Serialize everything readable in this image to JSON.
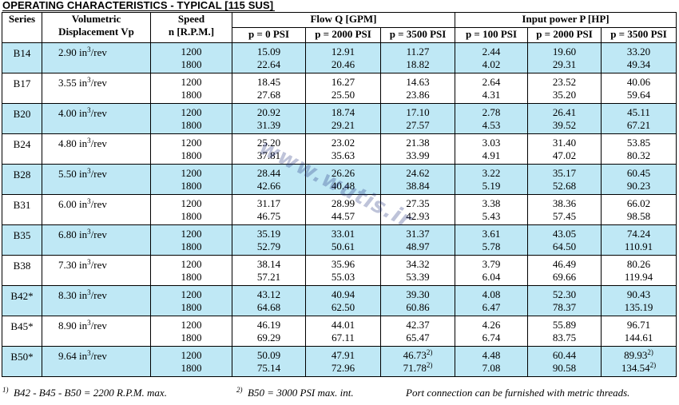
{
  "title": "OPERATING CHARACTERISTICS - TYPICAL [115 SUS]",
  "headers": {
    "series": "Series",
    "displacement_line1": "Volumetric",
    "displacement_line2": "Displacement Vp",
    "speed_line1": "Speed",
    "speed_line2": "n [R.P.M.]",
    "flow_group": "Flow Q [GPM]",
    "power_group": "Input power P [HP]",
    "flow_cols": [
      "p = 0 PSI",
      "p = 2000 PSI",
      "p = 3500 PSI"
    ],
    "power_cols": [
      "p = 100 PSI",
      "p = 2000 PSI",
      "p = 3500 PSI"
    ]
  },
  "rows": [
    {
      "series": "B14",
      "disp": "2.90",
      "speeds": [
        "1200",
        "1800"
      ],
      "flow0": [
        "15.09",
        "22.64"
      ],
      "flow2000": [
        "12.91",
        "20.46"
      ],
      "flow3500": [
        "11.27",
        "18.82"
      ],
      "pow100": [
        "2.44",
        "4.02"
      ],
      "pow2000": [
        "19.60",
        "29.31"
      ],
      "pow3500": [
        "33.20",
        "49.34"
      ]
    },
    {
      "series": "B17",
      "disp": "3.55",
      "speeds": [
        "1200",
        "1800"
      ],
      "flow0": [
        "18.45",
        "27.68"
      ],
      "flow2000": [
        "16.27",
        "25.50"
      ],
      "flow3500": [
        "14.63",
        "23.86"
      ],
      "pow100": [
        "2.64",
        "4.31"
      ],
      "pow2000": [
        "23.52",
        "35.20"
      ],
      "pow3500": [
        "40.06",
        "59.64"
      ]
    },
    {
      "series": "B20",
      "disp": "4.00",
      "speeds": [
        "1200",
        "1800"
      ],
      "flow0": [
        "20.92",
        "31.39"
      ],
      "flow2000": [
        "18.74",
        "29.21"
      ],
      "flow3500": [
        "17.10",
        "27.57"
      ],
      "pow100": [
        "2.78",
        "4.53"
      ],
      "pow2000": [
        "26.41",
        "39.52"
      ],
      "pow3500": [
        "45.11",
        "67.21"
      ]
    },
    {
      "series": "B24",
      "disp": "4.80",
      "speeds": [
        "1200",
        "1800"
      ],
      "flow0": [
        "25.20",
        "37.81"
      ],
      "flow2000": [
        "23.02",
        "35.63"
      ],
      "flow3500": [
        "21.38",
        "33.99"
      ],
      "pow100": [
        "3.03",
        "4.91"
      ],
      "pow2000": [
        "31.40",
        "47.02"
      ],
      "pow3500": [
        "53.85",
        "80.32"
      ]
    },
    {
      "series": "B28",
      "disp": "5.50",
      "speeds": [
        "1200",
        "1800"
      ],
      "flow0": [
        "28.44",
        "42.66"
      ],
      "flow2000": [
        "26.26",
        "40.48"
      ],
      "flow3500": [
        "24.62",
        "38.84"
      ],
      "pow100": [
        "3.22",
        "5.19"
      ],
      "pow2000": [
        "35.17",
        "52.68"
      ],
      "pow3500": [
        "60.45",
        "90.23"
      ]
    },
    {
      "series": "B31",
      "disp": "6.00",
      "speeds": [
        "1200",
        "1800"
      ],
      "flow0": [
        "31.17",
        "46.75"
      ],
      "flow2000": [
        "28.99",
        "44.57"
      ],
      "flow3500": [
        "27.35",
        "42.93"
      ],
      "pow100": [
        "3.38",
        "5.43"
      ],
      "pow2000": [
        "38.36",
        "57.45"
      ],
      "pow3500": [
        "66.02",
        "98.58"
      ]
    },
    {
      "series": "B35",
      "disp": "6.80",
      "speeds": [
        "1200",
        "1800"
      ],
      "flow0": [
        "35.19",
        "52.79"
      ],
      "flow2000": [
        "33.01",
        "50.61"
      ],
      "flow3500": [
        "31.37",
        "48.97"
      ],
      "pow100": [
        "3.61",
        "5.78"
      ],
      "pow2000": [
        "43.05",
        "64.50"
      ],
      "pow3500": [
        "74.24",
        "110.91"
      ]
    },
    {
      "series": "B38",
      "disp": "7.30",
      "speeds": [
        "1200",
        "1800"
      ],
      "flow0": [
        "38.14",
        "57.21"
      ],
      "flow2000": [
        "35.96",
        "55.03"
      ],
      "flow3500": [
        "34.32",
        "53.39"
      ],
      "pow100": [
        "3.79",
        "6.04"
      ],
      "pow2000": [
        "46.49",
        "69.66"
      ],
      "pow3500": [
        "80.26",
        "119.94"
      ]
    },
    {
      "series": "B42*",
      "disp": "8.30",
      "speeds": [
        "1200",
        "1800"
      ],
      "flow0": [
        "43.12",
        "64.68"
      ],
      "flow2000": [
        "40.94",
        "62.50"
      ],
      "flow3500": [
        "39.30",
        "60.86"
      ],
      "pow100": [
        "4.08",
        "6.47"
      ],
      "pow2000": [
        "52.30",
        "78.37"
      ],
      "pow3500": [
        "90.43",
        "135.19"
      ]
    },
    {
      "series": "B45*",
      "disp": "8.90",
      "speeds": [
        "1200",
        "1800"
      ],
      "flow0": [
        "46.19",
        "69.29"
      ],
      "flow2000": [
        "44.01",
        "67.11"
      ],
      "flow3500": [
        "42.37",
        "65.47"
      ],
      "pow100": [
        "4.26",
        "6.74"
      ],
      "pow2000": [
        "55.89",
        "83.75"
      ],
      "pow3500": [
        "96.71",
        "144.61"
      ]
    },
    {
      "series": "B50*",
      "disp": "9.64",
      "speeds": [
        "1200",
        "1800"
      ],
      "flow0": [
        "50.09",
        "75.14"
      ],
      "flow2000": [
        "47.91",
        "72.96"
      ],
      "flow3500": [
        "46.73",
        "71.78"
      ],
      "pow100": [
        "4.48",
        "7.08"
      ],
      "pow2000": [
        "60.44",
        "90.58"
      ],
      "pow3500": [
        "89.93",
        "134.54"
      ],
      "notes_flow3500": [
        "2)",
        "2)"
      ],
      "notes_pow3500": [
        "2)",
        "2)"
      ]
    }
  ],
  "unit": {
    "base": "in",
    "exp": "3",
    "suffix": "/rev"
  },
  "footnotes": [
    {
      "mark": "1)",
      "text": "B42 - B45 - B50 = 2200 R.P.M. max."
    },
    {
      "mark": "2)",
      "text": "B50 = 3000 PSI max. int."
    },
    {
      "mark": "",
      "text": "Port connection can be furnished with metric threads."
    }
  ],
  "watermark": "www.wutis.ir",
  "colors": {
    "shade": "#bfe8f5",
    "watermark": "#14287a"
  }
}
